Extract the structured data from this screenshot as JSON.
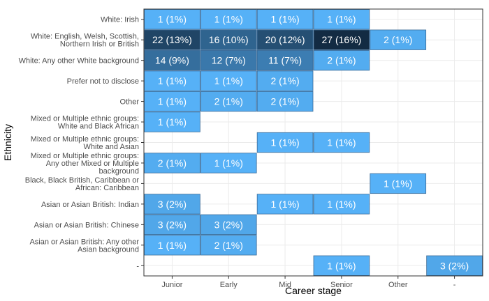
{
  "chart_data": {
    "type": "heatmap",
    "xlabel": "Career stage",
    "ylabel": "Ethnicity",
    "x_categories": [
      "Junior",
      "Early",
      "Mid",
      "Senior",
      "Other",
      "-"
    ],
    "y_categories": [
      [
        "White: Irish"
      ],
      [
        "White: English, Welsh, Scottish,",
        "Northern Irish or British"
      ],
      [
        "White: Any other White background"
      ],
      [
        "Prefer not to disclose"
      ],
      [
        "Other"
      ],
      [
        "Mixed or Multiple ethnic groups:",
        "White and Black African"
      ],
      [
        "Mixed or Multiple ethnic groups:",
        "White and Asian"
      ],
      [
        "Mixed or Multiple ethnic groups:",
        "Any other Mixed or Multiple",
        "background"
      ],
      [
        "Black, Black British, Caribbean or",
        "African: Caribbean"
      ],
      [
        "Asian or Asian British: Indian"
      ],
      [
        "Asian or Asian British: Chinese"
      ],
      [
        "Asian or Asian British: Any other",
        "Asian background"
      ],
      [
        "-"
      ]
    ],
    "cells": [
      {
        "x": "Junior",
        "y": 0,
        "count": 1,
        "label": "1 (1%)"
      },
      {
        "x": "Early",
        "y": 0,
        "count": 1,
        "label": "1 (1%)"
      },
      {
        "x": "Mid",
        "y": 0,
        "count": 1,
        "label": "1 (1%)"
      },
      {
        "x": "Senior",
        "y": 0,
        "count": 1,
        "label": "1 (1%)"
      },
      {
        "x": "Junior",
        "y": 1,
        "count": 22,
        "label": "22 (13%)"
      },
      {
        "x": "Early",
        "y": 1,
        "count": 16,
        "label": "16 (10%)"
      },
      {
        "x": "Mid",
        "y": 1,
        "count": 20,
        "label": "20 (12%)"
      },
      {
        "x": "Senior",
        "y": 1,
        "count": 27,
        "label": "27 (16%)"
      },
      {
        "x": "Other",
        "y": 1,
        "count": 2,
        "label": "2 (1%)"
      },
      {
        "x": "Junior",
        "y": 2,
        "count": 14,
        "label": "14 (9%)"
      },
      {
        "x": "Early",
        "y": 2,
        "count": 12,
        "label": "12 (7%)"
      },
      {
        "x": "Mid",
        "y": 2,
        "count": 11,
        "label": "11 (7%)"
      },
      {
        "x": "Senior",
        "y": 2,
        "count": 2,
        "label": "2 (1%)"
      },
      {
        "x": "Junior",
        "y": 3,
        "count": 1,
        "label": "1 (1%)"
      },
      {
        "x": "Early",
        "y": 3,
        "count": 1,
        "label": "1 (1%)"
      },
      {
        "x": "Mid",
        "y": 3,
        "count": 2,
        "label": "2 (1%)"
      },
      {
        "x": "Junior",
        "y": 4,
        "count": 1,
        "label": "1 (1%)"
      },
      {
        "x": "Early",
        "y": 4,
        "count": 2,
        "label": "2 (1%)"
      },
      {
        "x": "Mid",
        "y": 4,
        "count": 2,
        "label": "2 (1%)"
      },
      {
        "x": "Junior",
        "y": 5,
        "count": 1,
        "label": "1 (1%)"
      },
      {
        "x": "Mid",
        "y": 6,
        "count": 1,
        "label": "1 (1%)"
      },
      {
        "x": "Senior",
        "y": 6,
        "count": 1,
        "label": "1 (1%)"
      },
      {
        "x": "Junior",
        "y": 7,
        "count": 2,
        "label": "2 (1%)"
      },
      {
        "x": "Early",
        "y": 7,
        "count": 1,
        "label": "1 (1%)"
      },
      {
        "x": "Other",
        "y": 8,
        "count": 1,
        "label": "1 (1%)"
      },
      {
        "x": "Junior",
        "y": 9,
        "count": 3,
        "label": "3 (2%)"
      },
      {
        "x": "Mid",
        "y": 9,
        "count": 1,
        "label": "1 (1%)"
      },
      {
        "x": "Senior",
        "y": 9,
        "count": 1,
        "label": "1 (1%)"
      },
      {
        "x": "Junior",
        "y": 10,
        "count": 3,
        "label": "3 (2%)"
      },
      {
        "x": "Early",
        "y": 10,
        "count": 3,
        "label": "3 (2%)"
      },
      {
        "x": "Junior",
        "y": 11,
        "count": 1,
        "label": "1 (1%)"
      },
      {
        "x": "Early",
        "y": 11,
        "count": 2,
        "label": "2 (1%)"
      },
      {
        "x": "Senior",
        "y": 12,
        "count": 1,
        "label": "1 (1%)"
      },
      {
        "x": "-",
        "y": 12,
        "count": 3,
        "label": "3 (2%)"
      }
    ],
    "color_scale": {
      "low": "#56B1F7",
      "high": "#132B43",
      "min": 1,
      "max": 27
    },
    "grid": true,
    "legend": "none"
  }
}
